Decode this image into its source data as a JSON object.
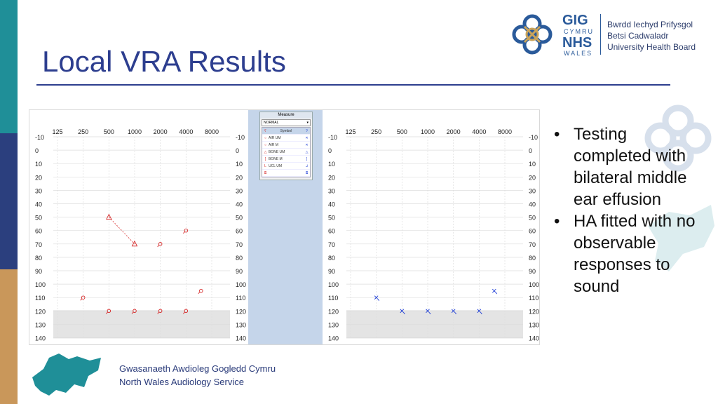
{
  "slide": {
    "title": "Local VRA Results",
    "colors": {
      "title": "#2d3e8f",
      "band_teal": "#1f8f98",
      "band_navy": "#2b3f7e",
      "band_tan": "#c9975a",
      "right_marker": "#d62828",
      "left_marker": "#1f3ed6"
    }
  },
  "logo": {
    "line1": "GIG",
    "line2": "CYMRU",
    "line3": "NHS",
    "line4": "WALES",
    "org_line1": "Bwrdd Iechyd Prifysgol",
    "org_line2": "Betsi Cadwaladr",
    "org_line3": "University Health Board"
  },
  "audiogram": {
    "freq_labels": [
      "125",
      "250",
      "500",
      "1000",
      "2000",
      "4000",
      "8000"
    ],
    "db_labels": [
      "-10",
      "0",
      "10",
      "20",
      "30",
      "40",
      "50",
      "60",
      "70",
      "80",
      "90",
      "100",
      "110",
      "120",
      "130",
      "140"
    ],
    "db_values": [
      -10,
      0,
      10,
      20,
      30,
      40,
      50,
      60,
      70,
      80,
      90,
      100,
      110,
      120,
      130,
      140
    ],
    "right_ear": {
      "color": "#d62828",
      "bone_um": [
        {
          "f": 500,
          "db": 50
        },
        {
          "f": 1000,
          "db": 70
        }
      ],
      "soundfield": [
        {
          "f": 2000,
          "db": 70
        },
        {
          "f": 4000,
          "db": 60
        },
        {
          "f": 250,
          "db": 110
        },
        {
          "f": 6000,
          "db": 105
        }
      ],
      "no_response": [
        {
          "f": 500,
          "db": 120
        },
        {
          "f": 1000,
          "db": 120
        },
        {
          "f": 2000,
          "db": 120
        },
        {
          "f": 4000,
          "db": 120
        }
      ]
    },
    "left_ear": {
      "color": "#1f3ed6",
      "air_um": [
        {
          "f": 250,
          "db": 110
        },
        {
          "f": 500,
          "db": 120
        },
        {
          "f": 1000,
          "db": 120
        },
        {
          "f": 2000,
          "db": 120
        },
        {
          "f": 4000,
          "db": 120
        },
        {
          "f": 6000,
          "db": 105
        }
      ]
    }
  },
  "measure_panel": {
    "header": "Measure",
    "select_value": "NORMAL",
    "symbol_header": "Symbol",
    "rows": [
      "AIR UM",
      "AIR M",
      "BONE UM",
      "BONE M",
      "UCL UM",
      ""
    ]
  },
  "bullets": [
    "Testing completed with bilateral middle ear effusion",
    "HA fitted with no observable responses to sound"
  ],
  "footer": {
    "line1": "Gwasanaeth Awdioleg Gogledd Cymru",
    "line2": "North Wales Audiology Service"
  }
}
